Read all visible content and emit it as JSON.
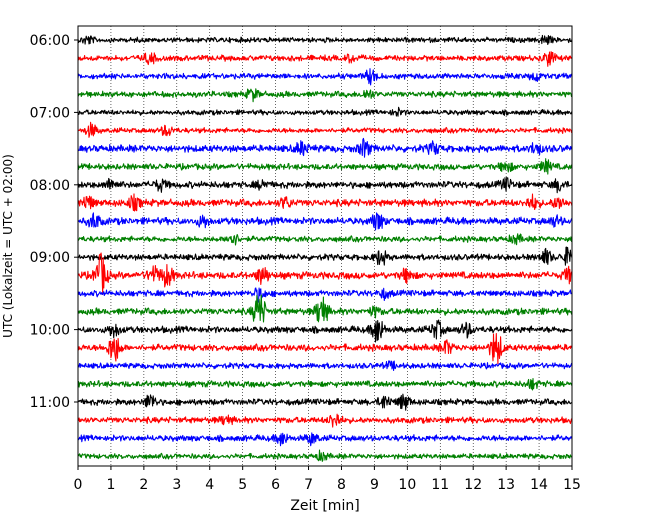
{
  "chart_data": {
    "type": "line",
    "title": "",
    "xlabel": "Zeit  [min]",
    "ylabel": "UTC (Lokalzeit = UTC + 02:00)",
    "xlim": [
      0,
      15
    ],
    "x_ticks": [
      0,
      1,
      2,
      3,
      4,
      5,
      6,
      7,
      8,
      9,
      10,
      11,
      12,
      13,
      14,
      15
    ],
    "x_tick_labels": [
      "0",
      "1",
      "2",
      "3",
      "4",
      "5",
      "6",
      "7",
      "8",
      "9",
      "10",
      "11",
      "12",
      "13",
      "14",
      "15"
    ],
    "y_tick_labels": [
      "06:00",
      "07:00",
      "08:00",
      "09:00",
      "10:00",
      "11:00"
    ],
    "y_tick_row_index": [
      0,
      4,
      8,
      12,
      16,
      20
    ],
    "row_minutes": 15,
    "grid": "vertical dotted",
    "colors": [
      "#000000",
      "#ff0000",
      "#0000ff",
      "#008000"
    ],
    "series": [
      {
        "name": "06:00",
        "base_amp": 2.0,
        "events": [
          {
            "t": 0.3,
            "amp": 3.5
          },
          {
            "t": 14.2,
            "amp": 4
          }
        ]
      },
      {
        "name": "06:15",
        "base_amp": 2.2,
        "events": [
          {
            "t": 2.2,
            "amp": 5
          },
          {
            "t": 14.3,
            "amp": 7
          },
          {
            "t": 8.3,
            "amp": 3
          }
        ]
      },
      {
        "name": "06:30",
        "base_amp": 2.2,
        "events": [
          {
            "t": 8.9,
            "amp": 7
          },
          {
            "t": 13.9,
            "amp": 4
          }
        ]
      },
      {
        "name": "06:45",
        "base_amp": 2.3,
        "events": [
          {
            "t": 5.3,
            "amp": 5
          },
          {
            "t": 8.8,
            "amp": 4
          }
        ]
      },
      {
        "name": "07:00",
        "base_amp": 2.0,
        "events": [
          {
            "t": 9.7,
            "amp": 3
          }
        ]
      },
      {
        "name": "07:15",
        "base_amp": 2.0,
        "events": [
          {
            "t": 0.4,
            "amp": 6
          },
          {
            "t": 2.7,
            "amp": 5
          }
        ]
      },
      {
        "name": "07:30",
        "base_amp": 2.8,
        "events": [
          {
            "t": 6.8,
            "amp": 6
          },
          {
            "t": 8.7,
            "amp": 8
          },
          {
            "t": 10.8,
            "amp": 5
          },
          {
            "t": 13.9,
            "amp": 5
          }
        ]
      },
      {
        "name": "07:45",
        "base_amp": 2.4,
        "events": [
          {
            "t": 13.0,
            "amp": 5
          },
          {
            "t": 14.2,
            "amp": 6
          }
        ]
      },
      {
        "name": "08:00",
        "base_amp": 2.6,
        "events": [
          {
            "t": 1.0,
            "amp": 5
          },
          {
            "t": 2.5,
            "amp": 5
          },
          {
            "t": 5.6,
            "amp": 4
          },
          {
            "t": 13.0,
            "amp": 5
          },
          {
            "t": 14.6,
            "amp": 5
          }
        ]
      },
      {
        "name": "08:15",
        "base_amp": 2.8,
        "events": [
          {
            "t": 0.3,
            "amp": 6
          },
          {
            "t": 1.7,
            "amp": 6
          },
          {
            "t": 6.3,
            "amp": 5
          },
          {
            "t": 13.8,
            "amp": 6
          },
          {
            "t": 14.6,
            "amp": 5
          }
        ]
      },
      {
        "name": "08:30",
        "base_amp": 2.8,
        "events": [
          {
            "t": 0.5,
            "amp": 7
          },
          {
            "t": 3.8,
            "amp": 5
          },
          {
            "t": 9.1,
            "amp": 8
          },
          {
            "t": 14.5,
            "amp": 4
          }
        ]
      },
      {
        "name": "08:45",
        "base_amp": 2.2,
        "events": [
          {
            "t": 4.7,
            "amp": 6
          },
          {
            "t": 13.3,
            "amp": 4
          }
        ]
      },
      {
        "name": "09:00",
        "base_amp": 2.4,
        "events": [
          {
            "t": 9.2,
            "amp": 7
          },
          {
            "t": 14.2,
            "amp": 7
          },
          {
            "t": 14.9,
            "amp": 9
          }
        ]
      },
      {
        "name": "09:15",
        "base_amp": 2.8,
        "events": [
          {
            "t": 0.7,
            "amp": 20
          },
          {
            "t": 2.3,
            "amp": 7
          },
          {
            "t": 2.7,
            "amp": 10
          },
          {
            "t": 5.6,
            "amp": 8
          },
          {
            "t": 10.0,
            "amp": 6
          },
          {
            "t": 14.9,
            "amp": 6
          }
        ]
      },
      {
        "name": "09:30",
        "base_amp": 2.4,
        "events": [
          {
            "t": 5.5,
            "amp": 6
          },
          {
            "t": 9.3,
            "amp": 4
          }
        ]
      },
      {
        "name": "09:45",
        "base_amp": 2.6,
        "events": [
          {
            "t": 5.5,
            "amp": 18
          },
          {
            "t": 7.4,
            "amp": 15
          },
          {
            "t": 9.0,
            "amp": 4
          }
        ]
      },
      {
        "name": "10:00",
        "base_amp": 2.6,
        "events": [
          {
            "t": 1.1,
            "amp": 6
          },
          {
            "t": 9.1,
            "amp": 13
          },
          {
            "t": 10.9,
            "amp": 8
          },
          {
            "t": 11.8,
            "amp": 6
          }
        ]
      },
      {
        "name": "10:15",
        "base_amp": 2.6,
        "events": [
          {
            "t": 1.1,
            "amp": 14
          },
          {
            "t": 11.2,
            "amp": 6
          },
          {
            "t": 12.7,
            "amp": 16
          }
        ]
      },
      {
        "name": "10:30",
        "base_amp": 2.2,
        "events": [
          {
            "t": 9.5,
            "amp": 3
          }
        ]
      },
      {
        "name": "10:45",
        "base_amp": 2.4,
        "events": [
          {
            "t": 13.8,
            "amp": 4
          }
        ]
      },
      {
        "name": "11:00",
        "base_amp": 2.4,
        "events": [
          {
            "t": 2.2,
            "amp": 7
          },
          {
            "t": 9.3,
            "amp": 6
          },
          {
            "t": 9.9,
            "amp": 7
          }
        ]
      },
      {
        "name": "11:15",
        "base_amp": 2.4,
        "events": [
          {
            "t": 7.8,
            "amp": 7
          },
          {
            "t": 4.5,
            "amp": 4
          }
        ]
      },
      {
        "name": "11:30",
        "base_amp": 2.4,
        "events": [
          {
            "t": 6.2,
            "amp": 6
          },
          {
            "t": 7.1,
            "amp": 5
          }
        ]
      },
      {
        "name": "11:45",
        "base_amp": 2.0,
        "events": [
          {
            "t": 7.4,
            "amp": 4
          }
        ]
      }
    ]
  }
}
